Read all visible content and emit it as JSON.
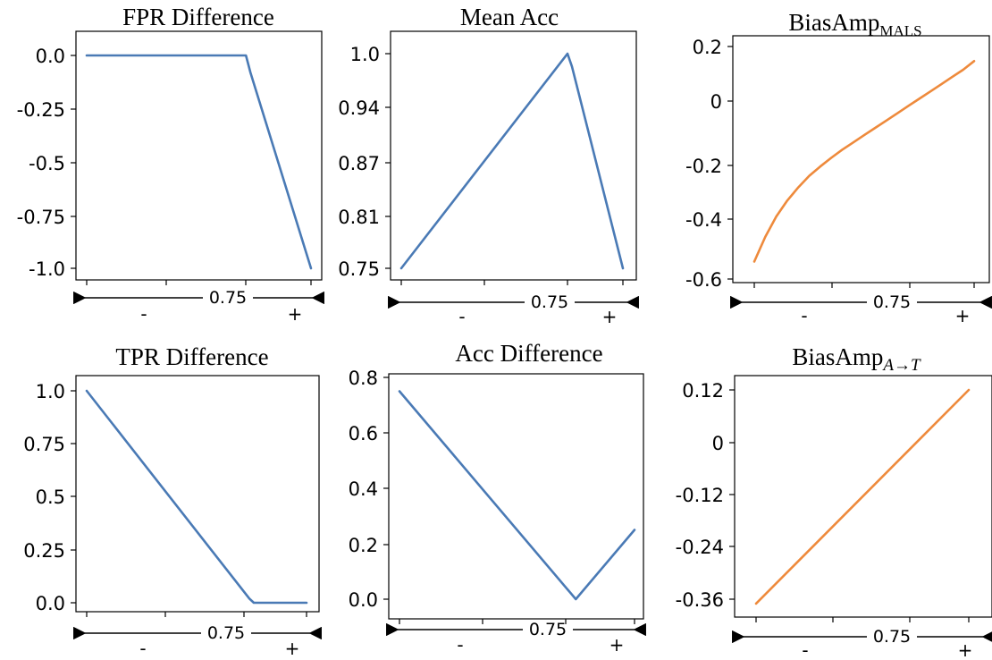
{
  "colors": {
    "blue": "#4a7ab5",
    "orange": "#ee8a3c"
  },
  "axis_annotation": {
    "mid_label": "0.75",
    "left_sign": "-",
    "right_sign": "+"
  },
  "chart_data": [
    {
      "type": "line",
      "title": "FPR Difference",
      "color": "blue",
      "x": [
        0,
        0.71,
        0.73,
        1.0
      ],
      "y": [
        0,
        0,
        -0.08,
        -1.0
      ],
      "ylim": [
        -1.0,
        0.0
      ],
      "yticks": [
        0.0,
        -0.25,
        -0.5,
        -0.75,
        -1.0
      ],
      "ytick_labels": [
        "0.0",
        "-0.25",
        "-0.5",
        "-0.75",
        "-1.0"
      ]
    },
    {
      "type": "line",
      "title": "Mean Acc",
      "color": "blue",
      "x": [
        0,
        0.75,
        0.77,
        1.0
      ],
      "y": [
        0.75,
        1.0,
        0.985,
        0.75
      ],
      "ylim": [
        0.75,
        1.0
      ],
      "yticks": [
        1.0,
        0.94,
        0.87,
        0.81,
        0.75
      ],
      "ytick_labels": [
        "1.0",
        "0.94",
        "0.87",
        "0.81",
        "0.75"
      ]
    },
    {
      "type": "line",
      "title": "BiasAmp",
      "title_sub": "MALS",
      "title_sub_style": "roman",
      "color": "orange",
      "x": [
        0,
        0.05,
        0.1,
        0.15,
        0.2,
        0.25,
        0.3,
        0.35,
        0.4,
        0.45,
        0.5,
        0.55,
        0.6,
        0.65,
        0.7,
        0.75,
        0.8,
        0.85,
        0.9,
        0.95,
        1.0
      ],
      "y": [
        -0.54,
        -0.455,
        -0.385,
        -0.33,
        -0.285,
        -0.245,
        -0.213,
        -0.183,
        -0.155,
        -0.13,
        -0.105,
        -0.08,
        -0.055,
        -0.03,
        -0.005,
        0.02,
        0.045,
        0.07,
        0.095,
        0.12,
        0.15
      ],
      "ylim": [
        -0.6,
        0.2
      ],
      "yticks": [
        0.2,
        0,
        -0.2,
        -0.4,
        -0.6
      ],
      "ytick_labels": [
        "0.2",
        "0",
        "-0.2",
        "-0.4",
        "-0.6"
      ]
    },
    {
      "type": "line",
      "title": "TPR Difference",
      "color": "blue",
      "x": [
        0,
        0.74,
        0.76,
        1.0
      ],
      "y": [
        1.0,
        0.02,
        0.0,
        0.0
      ],
      "ylim": [
        0.0,
        1.0
      ],
      "yticks": [
        1.0,
        0.75,
        0.5,
        0.25,
        0.0
      ],
      "ytick_labels": [
        "1.0",
        "0.75",
        "0.5",
        "0.25",
        "0.0"
      ]
    },
    {
      "type": "line",
      "title": "Acc Difference",
      "color": "blue",
      "x": [
        0,
        0.75,
        1.0
      ],
      "y": [
        0.75,
        0.0,
        0.25
      ],
      "ylim": [
        0.0,
        0.8
      ],
      "yticks": [
        0.8,
        0.6,
        0.4,
        0.2,
        0.0
      ],
      "ytick_labels": [
        "0.8",
        "0.6",
        "0.4",
        "0.2",
        "0.0"
      ]
    },
    {
      "type": "line",
      "title": "BiasAmp",
      "title_sub": "A→T",
      "title_sub_style": "italic",
      "color": "orange",
      "x": [
        0,
        1.0
      ],
      "y": [
        -0.37,
        0.12
      ],
      "ylim": [
        -0.36,
        0.12
      ],
      "yticks": [
        0.12,
        0,
        -0.12,
        -0.24,
        -0.36
      ],
      "ytick_labels": [
        "0.12",
        "0",
        "-0.12",
        "-0.24",
        "-0.36"
      ]
    }
  ]
}
